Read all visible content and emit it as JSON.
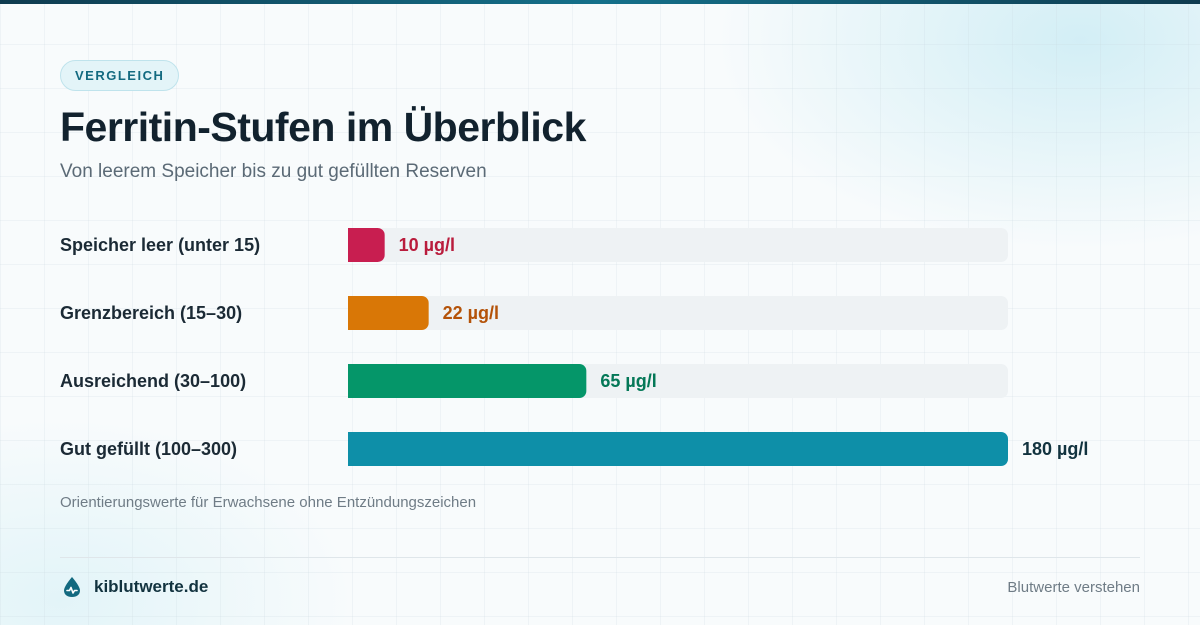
{
  "badge": "VERGLEICH",
  "title": "Ferritin-Stufen im Überblick",
  "subtitle": "Von leerem Speicher bis zu gut gefüllten Reserven",
  "footnote": "Orientierungswerte für Erwachsene ohne Entzündungszeichen",
  "brand": {
    "name": "kiblutwerte.de",
    "icon": "blood-drop-pulse-icon"
  },
  "tagline": "Blutwerte verstehen",
  "colors": {
    "accent": "#136a80",
    "track": "#eef2f4",
    "bars": [
      "#c81e50",
      "#d97706",
      "#059669",
      "#0e8fa8"
    ],
    "value_labels": [
      "#b91c3c",
      "#b45309",
      "#047857",
      "#12333f"
    ]
  },
  "chart_data": {
    "type": "bar",
    "orientation": "horizontal",
    "categories": [
      "Speicher leer (unter 15)",
      "Grenzbereich (15–30)",
      "Ausreichend (30–100)",
      "Gut gefüllt (100–300)"
    ],
    "values": [
      10,
      22,
      65,
      180
    ],
    "value_labels": [
      "10 µg/l",
      "22 µg/l",
      "65 µg/l",
      "180 µg/l"
    ],
    "unit": "µg/l",
    "xlim": [
      0,
      180
    ],
    "grid": false,
    "legend": "none"
  }
}
